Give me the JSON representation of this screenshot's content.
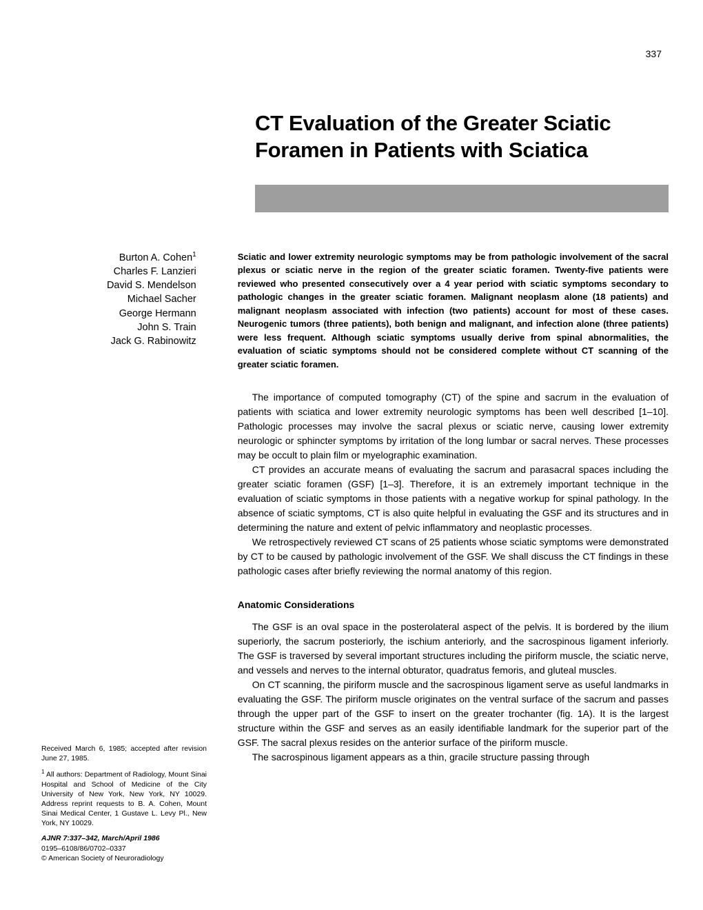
{
  "page_number": "337",
  "title": "CT Evaluation of the Greater Sciatic Foramen in Patients with Sciatica",
  "authors": [
    "Burton A. Cohen",
    "Charles F. Lanzieri",
    "David S. Mendelson",
    "Michael Sacher",
    "George Hermann",
    "John S. Train",
    "Jack G. Rabinowitz"
  ],
  "author_sup": "1",
  "abstract": "Sciatic and lower extremity neurologic symptoms may be from pathologic involvement of the sacral plexus or sciatic nerve in the region of the greater sciatic foramen. Twenty-five patients were reviewed who presented consecutively over a 4 year period with sciatic symptoms secondary to pathologic changes in the greater sciatic foramen. Malignant neoplasm alone (18 patients) and malignant neoplasm associated with infection (two patients) account for most of these cases. Neurogenic tumors (three patients), both benign and malignant, and infection alone (three patients) were less frequent. Although sciatic symptoms usually derive from spinal abnormalities, the evaluation of sciatic symptoms should not be considered complete without CT scanning of the greater sciatic foramen.",
  "body": {
    "p1": "The importance of computed tomography (CT) of the spine and sacrum in the evaluation of patients with sciatica and lower extremity neurologic symptoms has been well described [1–10]. Pathologic processes may involve the sacral plexus or sciatic nerve, causing lower extremity neurologic or sphincter symptoms by irritation of the long lumbar or sacral nerves. These processes may be occult to plain film or myelographic examination.",
    "p2": "CT provides an accurate means of evaluating the sacrum and parasacral spaces including the greater sciatic foramen (GSF) [1–3]. Therefore, it is an extremely important technique in the evaluation of sciatic symptoms in those patients with a negative workup for spinal pathology. In the absence of sciatic symptoms, CT is also quite helpful in evaluating the GSF and its structures and in determining the nature and extent of pelvic inflammatory and neoplastic processes.",
    "p3": "We retrospectively reviewed CT scans of 25 patients whose sciatic symptoms were demonstrated by CT to be caused by pathologic involvement of the GSF. We shall discuss the CT findings in these pathologic cases after briefly reviewing the normal anatomy of this region."
  },
  "section_heading": "Anatomic Considerations",
  "anatomic": {
    "p1": "The GSF is an oval space in the posterolateral aspect of the pelvis. It is bordered by the ilium superiorly, the sacrum posteriorly, the ischium anteriorly, and the sacrospinous ligament inferiorly. The GSF is traversed by several important structures including the piriform muscle, the sciatic nerve, and vessels and nerves to the internal obturator, quadratus femoris, and gluteal muscles.",
    "p2": "On CT scanning, the piriform muscle and the sacrospinous ligament serve as useful landmarks in evaluating the GSF. The piriform muscle originates on the ventral surface of the sacrum and passes through the upper part of the GSF to insert on the greater trochanter (fig. 1A). It is the largest structure within the GSF and serves as an easily identifiable landmark for the superior part of the GSF. The sacral plexus resides on the anterior surface of the piriform muscle.",
    "p3": "The sacrospinous ligament appears as a thin, gracile structure passing through"
  },
  "footnotes": {
    "received": "Received March 6, 1985; accepted after revision June 27, 1985.",
    "affiliation": "All authors: Department of Radiology, Mount Sinai Hospital and School of Medicine of the City University of New York, New York, NY 10029. Address reprint requests to B. A. Cohen, Mount Sinai Medical Center, 1 Gustave L. Levy Pl., New York, NY 10029.",
    "citation": "AJNR 7:337–342, March/April 1986",
    "issn": "0195–6108/86/0702–0337",
    "copyright": "© American Society of Neuroradiology"
  },
  "colors": {
    "bar": "#9e9e9e",
    "text": "#000000",
    "background": "#ffffff"
  }
}
